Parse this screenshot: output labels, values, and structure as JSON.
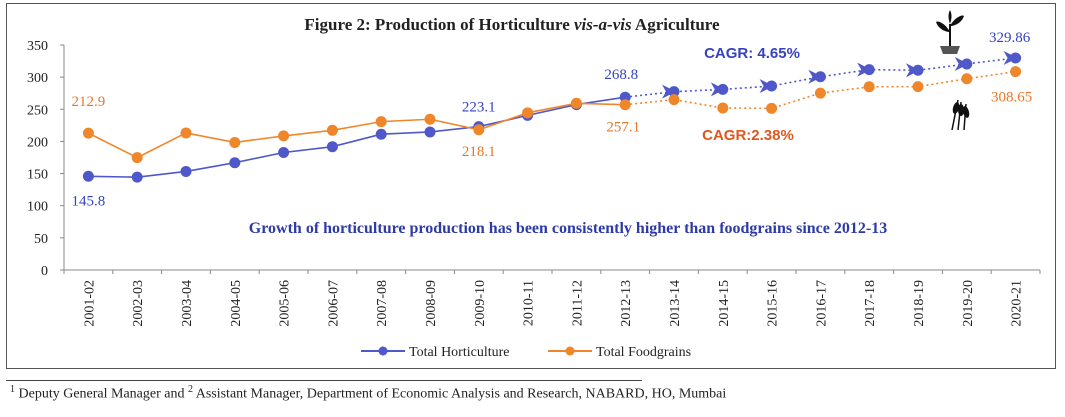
{
  "chart_data": {
    "type": "line",
    "title_prefix": "Figure 2: Production of Horticulture ",
    "title_italic": "vis-a-vis",
    "title_suffix": " Agriculture",
    "categories": [
      "2001-02",
      "2002-03",
      "2003-04",
      "2004-05",
      "2005-06",
      "2006-07",
      "2007-08",
      "2008-09",
      "2009-10",
      "2010-11",
      "2011-12",
      "2012-13",
      "2013-14",
      "2014-15",
      "2015-16",
      "2016-17",
      "2017-18",
      "2018-19",
      "2019-20",
      "2020-21"
    ],
    "ylim": [
      0,
      350
    ],
    "yticks": [
      "0",
      "50",
      "100",
      "150",
      "200",
      "250",
      "300",
      "350"
    ],
    "series": [
      {
        "name": "Total Horticulture",
        "color": "#4f58c8",
        "values": [
          145.8,
          144.4,
          153.3,
          166.9,
          182.8,
          191.8,
          211.2,
          214.7,
          223.1,
          240.5,
          257.3,
          268.8,
          277.4,
          280.9,
          286.2,
          300.6,
          311.7,
          310.7,
          320.5,
          329.86
        ]
      },
      {
        "name": "Total Foodgrains",
        "color": "#f0862a",
        "values": [
          212.9,
          174.8,
          213.2,
          198.4,
          208.6,
          217.3,
          230.8,
          234.5,
          218.1,
          244.5,
          259.3,
          257.1,
          265.0,
          252.0,
          251.5,
          275.1,
          285.0,
          285.2,
          297.5,
          308.65
        ]
      }
    ],
    "data_labels": [
      {
        "series": 0,
        "index": 0,
        "text": "145.8"
      },
      {
        "series": 0,
        "index": 8,
        "text": "223.1"
      },
      {
        "series": 0,
        "index": 11,
        "text": "268.8"
      },
      {
        "series": 0,
        "index": 19,
        "text": "329.86"
      },
      {
        "series": 1,
        "index": 0,
        "text": "212.9"
      },
      {
        "series": 1,
        "index": 8,
        "text": "218.1"
      },
      {
        "series": 1,
        "index": 11,
        "text": "257.1"
      },
      {
        "series": 1,
        "index": 19,
        "text": "308.65"
      }
    ],
    "annotations": {
      "cagr_horticulture": "CAGR: 4.65%",
      "cagr_foodgrains": "CAGR:2.38%",
      "growth_note": "Growth of horticulture production has been consistently higher than foodgrains since 2012-13"
    },
    "legend": [
      "Total Horticulture",
      "Total Foodgrains"
    ],
    "legend_position": "bottom-center"
  },
  "footnote": {
    "sup1": "1",
    "part1": " Deputy General Manager and ",
    "sup2": "2",
    "part2": " Assistant Manager, Department of Economic Analysis and Research, NABARD, HO, Mumbai"
  }
}
